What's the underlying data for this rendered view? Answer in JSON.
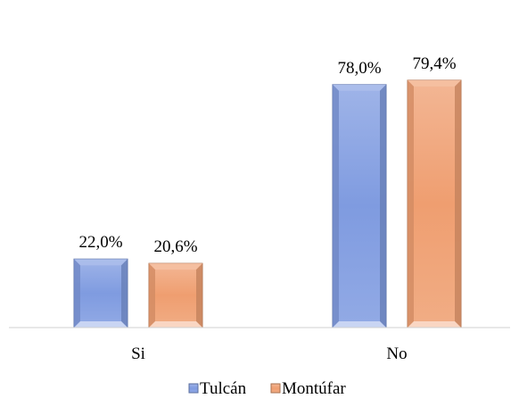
{
  "chart_data": {
    "type": "bar",
    "categories": [
      "Si",
      "No"
    ],
    "series": [
      {
        "name": "Tulcán",
        "values": [
          22.0,
          78.0
        ],
        "data_labels": [
          "22,0%",
          "78,0%"
        ],
        "color": "#7f9be0"
      },
      {
        "name": "Montúfar",
        "values": [
          20.6,
          79.4
        ],
        "data_labels": [
          "20,6%",
          "79,4%"
        ],
        "color": "#ef9e70"
      }
    ],
    "ylim": [
      0,
      100
    ],
    "grid": false,
    "legend": "bottom"
  }
}
